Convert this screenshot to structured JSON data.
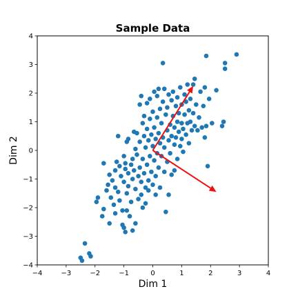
{
  "chart_data": {
    "type": "scatter",
    "title": "Sample Data",
    "xlabel": "Dim 1",
    "ylabel": "Dim 2",
    "xlim": [
      -4,
      4
    ],
    "ylim": [
      -4,
      4
    ],
    "xticks": [
      -4,
      -3,
      -2,
      -1,
      0,
      1,
      2,
      3,
      4
    ],
    "yticks": [
      -4,
      -3,
      -2,
      -1,
      0,
      1,
      2,
      3,
      4
    ],
    "grid": false,
    "marker_color": "#1f77b4",
    "arrow_color": "#ee1111",
    "points": [
      [
        -2.5,
        -3.75
      ],
      [
        -2.45,
        -3.85
      ],
      [
        -2.35,
        -3.25
      ],
      [
        -2.2,
        -3.6
      ],
      [
        -2.15,
        -3.7
      ],
      [
        -1.95,
        -1.8
      ],
      [
        -1.9,
        -1.65
      ],
      [
        -1.75,
        -2.3
      ],
      [
        -1.7,
        -0.45
      ],
      [
        -1.7,
        -2.05
      ],
      [
        -1.6,
        -1.4
      ],
      [
        -1.55,
        -1.2
      ],
      [
        -1.5,
        -0.85
      ],
      [
        -1.5,
        -2.55
      ],
      [
        -1.45,
        -1.65
      ],
      [
        -1.4,
        -1.05
      ],
      [
        -1.35,
        -1.9
      ],
      [
        -1.3,
        -1.3
      ],
      [
        -1.3,
        -0.7
      ],
      [
        -1.3,
        -2.2
      ],
      [
        -1.25,
        -0.4
      ],
      [
        -1.2,
        -1.45
      ],
      [
        -1.2,
        0.5
      ],
      [
        -1.15,
        -0.55
      ],
      [
        -1.15,
        -1.75
      ],
      [
        -1.1,
        -0.9
      ],
      [
        -1.05,
        -2.6
      ],
      [
        -1.05,
        -2.1
      ],
      [
        -1.0,
        -0.2
      ],
      [
        -1.0,
        -1.1
      ],
      [
        -1.0,
        -2.7
      ],
      [
        -0.95,
        -0.65
      ],
      [
        -0.95,
        -0.45
      ],
      [
        -0.95,
        -2.85
      ],
      [
        -0.9,
        -1.5
      ],
      [
        -0.9,
        0.3
      ],
      [
        -0.9,
        -2.1
      ],
      [
        -0.85,
        -0.8
      ],
      [
        -0.85,
        -1.25
      ],
      [
        -0.85,
        0.4
      ],
      [
        -0.8,
        -2.3
      ],
      [
        -0.75,
        -0.5
      ],
      [
        -0.75,
        -1.8
      ],
      [
        -0.7,
        -0.3
      ],
      [
        -0.7,
        -1.0
      ],
      [
        -0.7,
        -2.8
      ],
      [
        -0.65,
        0.65
      ],
      [
        -0.65,
        -0.7
      ],
      [
        -0.6,
        0.05
      ],
      [
        -0.6,
        -1.35
      ],
      [
        -0.6,
        -2.55
      ],
      [
        -0.55,
        -0.15
      ],
      [
        -0.55,
        0.6
      ],
      [
        -0.5,
        -0.9
      ],
      [
        -0.5,
        -1.7
      ],
      [
        -0.45,
        1.6
      ],
      [
        -0.45,
        0.3
      ],
      [
        -0.45,
        -0.6
      ],
      [
        -0.4,
        -1.1
      ],
      [
        -0.4,
        1.9
      ],
      [
        -0.4,
        -1.55
      ],
      [
        -0.35,
        0.95
      ],
      [
        -0.35,
        -0.3
      ],
      [
        -0.35,
        -2.0
      ],
      [
        -0.3,
        0.5
      ],
      [
        -0.3,
        -0.8
      ],
      [
        -0.3,
        1.2
      ],
      [
        -0.25,
        -1.3
      ],
      [
        -0.25,
        0.1
      ],
      [
        -0.25,
        -1.85
      ],
      [
        -0.2,
        1.65
      ],
      [
        -0.2,
        -0.5
      ],
      [
        -0.2,
        0.75
      ],
      [
        -0.15,
        -1.05
      ],
      [
        -0.15,
        0.35
      ],
      [
        -0.15,
        -1.4
      ],
      [
        -0.1,
        1.1
      ],
      [
        -0.1,
        -0.2
      ],
      [
        -0.1,
        1.8
      ],
      [
        -0.05,
        -0.75
      ],
      [
        -0.05,
        0.55
      ],
      [
        0.0,
        -1.2
      ],
      [
        0.0,
        1.35
      ],
      [
        0.0,
        0.15
      ],
      [
        0.05,
        -0.35
      ],
      [
        0.05,
        2.05
      ],
      [
        0.05,
        0.8
      ],
      [
        0.1,
        -1.55
      ],
      [
        0.1,
        0.4
      ],
      [
        0.1,
        -0.9
      ],
      [
        0.15,
        1.15
      ],
      [
        0.15,
        -0.1
      ],
      [
        0.15,
        1.9
      ],
      [
        0.2,
        0.6
      ],
      [
        0.2,
        -0.6
      ],
      [
        0.2,
        2.15
      ],
      [
        0.25,
        0.25
      ],
      [
        0.25,
        -1.3
      ],
      [
        0.25,
        1.45
      ],
      [
        0.3,
        0.95
      ],
      [
        0.3,
        -0.2
      ],
      [
        0.35,
        3.05
      ],
      [
        0.35,
        0.45
      ],
      [
        0.35,
        1.7
      ],
      [
        0.4,
        -0.75
      ],
      [
        0.4,
        0.1
      ],
      [
        0.4,
        2.15
      ],
      [
        0.45,
        1.25
      ],
      [
        0.45,
        -2.15
      ],
      [
        0.5,
        0.7
      ],
      [
        0.5,
        -0.4
      ],
      [
        0.5,
        1.5
      ],
      [
        0.55,
        0.35
      ],
      [
        0.55,
        1.95
      ],
      [
        0.55,
        -1.55
      ],
      [
        0.6,
        0.9
      ],
      [
        0.6,
        -0.1
      ],
      [
        0.65,
        1.75
      ],
      [
        0.65,
        0.5
      ],
      [
        0.65,
        -0.85
      ],
      [
        0.7,
        1.2
      ],
      [
        0.7,
        2.05
      ],
      [
        0.75,
        0.2
      ],
      [
        0.75,
        0.8
      ],
      [
        0.75,
        -0.7
      ],
      [
        0.8,
        1.55
      ],
      [
        0.8,
        0.45
      ],
      [
        0.85,
        1.0
      ],
      [
        0.85,
        1.85
      ],
      [
        0.85,
        -0.3
      ],
      [
        0.9,
        0.65
      ],
      [
        0.9,
        1.3
      ],
      [
        0.95,
        0.15
      ],
      [
        0.95,
        2.2
      ],
      [
        1.0,
        0.95
      ],
      [
        1.0,
        0.4
      ],
      [
        1.0,
        1.6
      ],
      [
        1.05,
        0.75
      ],
      [
        1.05,
        -0.05
      ],
      [
        1.1,
        1.25
      ],
      [
        1.1,
        1.95
      ],
      [
        1.15,
        0.55
      ],
      [
        1.15,
        1.7
      ],
      [
        1.2,
        0.95
      ],
      [
        1.2,
        2.3
      ],
      [
        1.25,
        0.25
      ],
      [
        1.25,
        1.4
      ],
      [
        1.3,
        1.0
      ],
      [
        1.3,
        1.8
      ],
      [
        1.35,
        0.7
      ],
      [
        1.4,
        2.3
      ],
      [
        1.4,
        1.3
      ],
      [
        1.45,
        2.5
      ],
      [
        1.45,
        0.85
      ],
      [
        1.5,
        1.6
      ],
      [
        1.55,
        0.7
      ],
      [
        1.6,
        1.15
      ],
      [
        1.65,
        2.05
      ],
      [
        1.7,
        0.8
      ],
      [
        1.75,
        1.55
      ],
      [
        1.8,
        2.2
      ],
      [
        1.8,
        0.45
      ],
      [
        1.85,
        0.85
      ],
      [
        1.85,
        3.3
      ],
      [
        1.9,
        -0.55
      ],
      [
        1.95,
        1.8
      ],
      [
        2.05,
        0.95
      ],
      [
        2.2,
        2.1
      ],
      [
        2.4,
        0.85
      ],
      [
        2.45,
        1.0
      ],
      [
        2.5,
        3.05
      ],
      [
        2.5,
        2.85
      ],
      [
        2.9,
        3.35
      ]
    ],
    "arrows": [
      {
        "from": [
          0,
          0
        ],
        "to": [
          1.4,
          2.25
        ]
      },
      {
        "from": [
          0,
          0
        ],
        "to": [
          2.2,
          -1.45
        ]
      }
    ]
  }
}
